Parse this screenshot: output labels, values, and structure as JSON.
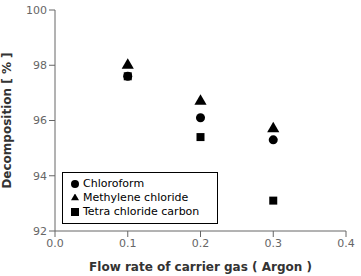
{
  "chart_data": {
    "type": "scatter",
    "xlabel": "Flow rate of carrier gas ( Argon )",
    "ylabel": "Decomposition [ % ]",
    "x": [
      0.1,
      0.2,
      0.3
    ],
    "series": [
      {
        "name": "Tetra chloride carbon",
        "color": "#000000",
        "marker": "square",
        "values": [
          97.6,
          95.4,
          93.1
        ]
      },
      {
        "name": "Chloroform",
        "color": "#000000",
        "marker": "circle",
        "values": [
          97.6,
          96.1,
          95.3
        ]
      },
      {
        "name": "Methylene chloride",
        "color": "#000000",
        "marker": "triangle",
        "values": [
          98.0,
          96.7,
          95.7
        ]
      }
    ],
    "xlim": [
      0.0,
      0.4
    ],
    "ylim": [
      92,
      100
    ],
    "xticks": [
      {
        "value": 0.0,
        "label": "0.0"
      },
      0.1,
      0.2,
      0.3,
      0.4
    ],
    "yticks": [
      92,
      94,
      96,
      98,
      100
    ],
    "grid": false,
    "legend": "lower left"
  }
}
